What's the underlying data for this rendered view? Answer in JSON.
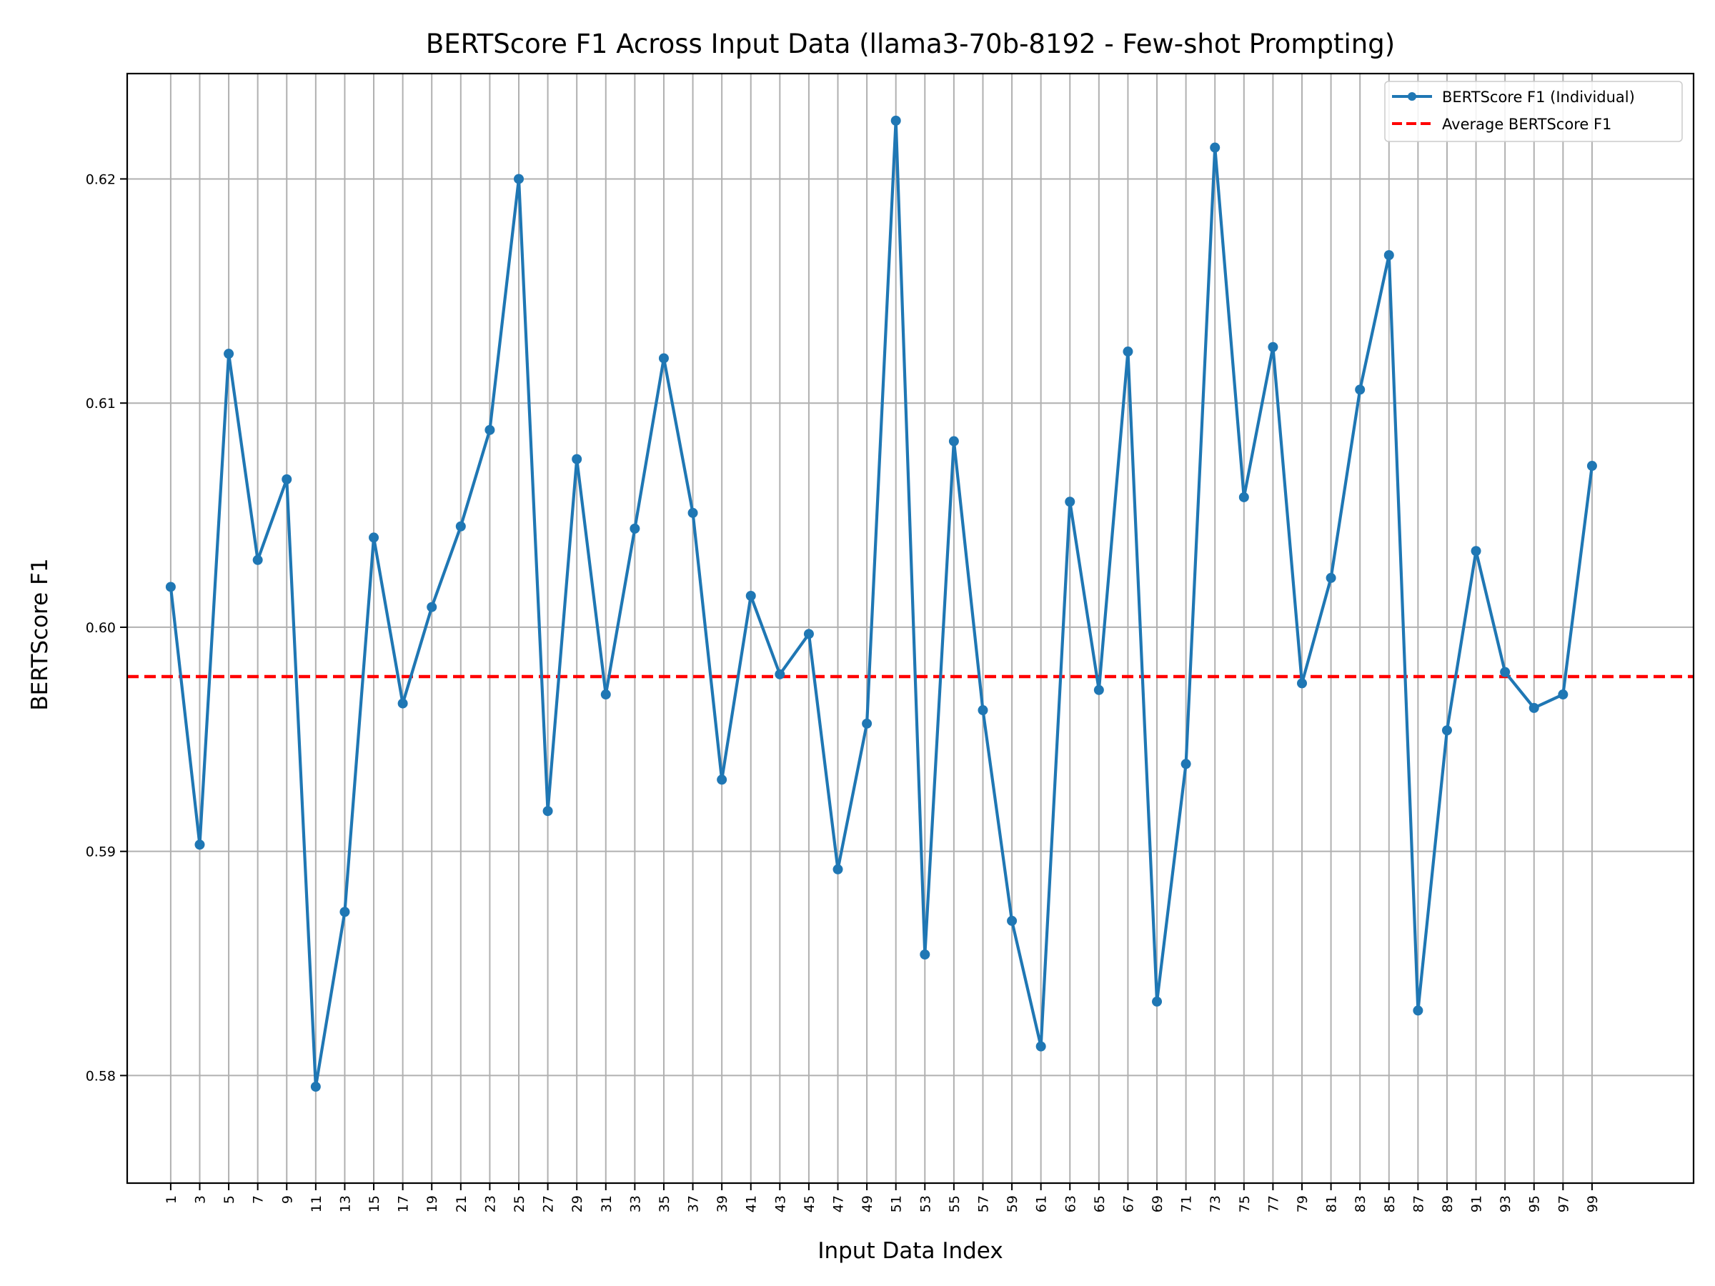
{
  "chart_data": {
    "type": "line",
    "title": "BERTScore F1 Across Input Data (llama3-70b-8192 - Few-shot Prompting)",
    "xlabel": "Input Data Index",
    "ylabel": "BERTScore F1",
    "xlim": [
      -1.5,
      52.5
    ],
    "ylim": [
      0.5752,
      0.6247
    ],
    "x_ticks": [
      "1",
      "3",
      "5",
      "7",
      "9",
      "11",
      "13",
      "15",
      "17",
      "19",
      "21",
      "23",
      "25",
      "27",
      "29",
      "31",
      "33",
      "35",
      "37",
      "39",
      "41",
      "43",
      "45",
      "47",
      "49",
      "51",
      "53",
      "55",
      "57",
      "59",
      "61",
      "63",
      "65",
      "67",
      "69",
      "71",
      "73",
      "75",
      "77",
      "79",
      "81",
      "83",
      "85",
      "87",
      "89",
      "91",
      "93",
      "95",
      "97",
      "99"
    ],
    "y_ticks": [
      0.58,
      0.59,
      0.6,
      0.61,
      0.62
    ],
    "y_tick_labels": [
      "0.58",
      "0.59",
      "0.60",
      "0.61",
      "0.62"
    ],
    "grid": true,
    "legend_position": "top-right",
    "series": [
      {
        "name": "BERTScore F1 (Individual)",
        "color": "#1f77b4",
        "style": "solid-with-markers",
        "values": [
          0.6018,
          0.5903,
          0.6122,
          0.603,
          0.6066,
          0.5795,
          0.5873,
          0.604,
          0.5966,
          0.6009,
          0.6045,
          0.6088,
          0.62,
          0.5918,
          0.6075,
          0.597,
          0.6044,
          0.612,
          0.6051,
          0.5932,
          0.6014,
          0.5979,
          0.5997,
          0.5892,
          0.5957,
          0.6226,
          0.5854,
          0.6083,
          0.5963,
          0.5869,
          0.5813,
          0.6056,
          0.5972,
          0.6123,
          0.5833,
          0.5939,
          0.6214,
          0.6058,
          0.6125,
          0.5975,
          0.6022,
          0.6106,
          0.6166,
          0.5829,
          0.5954,
          0.6034,
          0.598,
          0.5964,
          0.597,
          0.6072
        ]
      },
      {
        "name": "Average BERTScore F1",
        "color": "#ff0000",
        "style": "dashed",
        "value": 0.5978
      }
    ]
  }
}
